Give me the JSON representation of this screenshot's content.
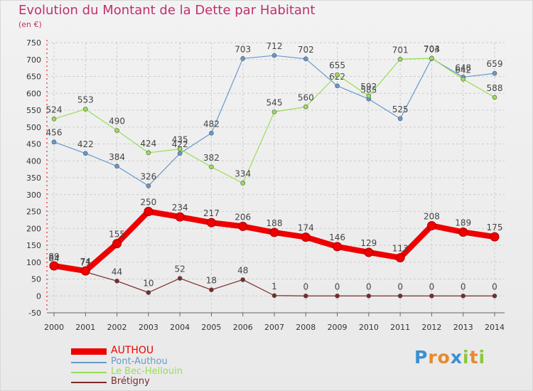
{
  "header": {
    "title": "Evolution du Montant de la Dette par Habitant",
    "subtitle": "(en €)"
  },
  "colors": {
    "title": "#c0306e",
    "grid": "#cccccc",
    "axis_red": "#dd0000"
  },
  "chart_data": {
    "type": "line",
    "title": "Evolution du Montant de la Dette par Habitant",
    "subtitle": "(en €)",
    "xlabel": "",
    "ylabel": "",
    "x": [
      "2000",
      "2001",
      "2002",
      "2003",
      "2004",
      "2005",
      "2006",
      "2007",
      "2008",
      "2009",
      "2010",
      "2011",
      "2012",
      "2013",
      "2014"
    ],
    "ylim": [
      -50,
      750
    ],
    "yticks": [
      "-50",
      "0",
      "50",
      "100",
      "150",
      "200",
      "250",
      "300",
      "350",
      "400",
      "450",
      "500",
      "550",
      "600",
      "650",
      "700",
      "750"
    ],
    "grid": true,
    "legend_position": "bottom-left",
    "series": [
      {
        "name": "AUTHOU",
        "color": "#ee0000",
        "values": [
          89,
          74,
          155,
          250,
          234,
          217,
          206,
          188,
          174,
          146,
          129,
          113,
          208,
          189,
          175
        ],
        "labels": [
          "89",
          "74",
          "155",
          "250",
          "234",
          "217",
          "206",
          "188",
          "174",
          "146",
          "129",
          "113",
          "208",
          "189",
          "175"
        ]
      },
      {
        "name": "Pont-Authou",
        "color": "#6699cc",
        "values": [
          456,
          422,
          384,
          326,
          422,
          482,
          703,
          712,
          702,
          622,
          583,
          525,
          703,
          648,
          659
        ],
        "labels": [
          "456",
          "422",
          "384",
          "326",
          "422",
          "482",
          "703",
          "712",
          "702",
          "622",
          "583",
          "525",
          "703",
          "648",
          "659"
        ]
      },
      {
        "name": "Le Bec-Hellouin",
        "color": "#99dd55",
        "values": [
          524,
          553,
          490,
          424,
          435,
          382,
          334,
          545,
          560,
          655,
          592,
          701,
          704,
          642,
          588
        ],
        "labels": [
          "524",
          "553",
          "490",
          "424",
          "435",
          "382",
          "334",
          "545",
          "560",
          "655",
          "592",
          "701",
          "704",
          "642",
          "588"
        ]
      },
      {
        "name": "Brétigny",
        "color": "#7a2a2a",
        "values": [
          84,
          71,
          44,
          10,
          52,
          18,
          48,
          1,
          0,
          0,
          0,
          0,
          0,
          0,
          0
        ],
        "labels": [
          "84",
          "71",
          "44",
          "10",
          "52",
          "18",
          "48",
          "1",
          "0",
          "0",
          "0",
          "0",
          "0",
          "0",
          "0"
        ]
      }
    ]
  },
  "legend": [
    {
      "label": "AUTHOU",
      "color": "#ee0000"
    },
    {
      "label": "Pont-Authou",
      "color": "#6699cc"
    },
    {
      "label": "Le Bec-Hellouin",
      "color": "#99dd55"
    },
    {
      "label": "Brétigny",
      "color": "#7a2a2a"
    }
  ],
  "logo": {
    "letters": [
      "P",
      "r",
      "o",
      "x",
      "i",
      "t",
      "i"
    ],
    "colors": [
      "#3a8fd0",
      "#e8892b",
      "#e8892b",
      "#3a8fd0",
      "#8cc63f",
      "#e8892b",
      "#8cc63f"
    ]
  }
}
